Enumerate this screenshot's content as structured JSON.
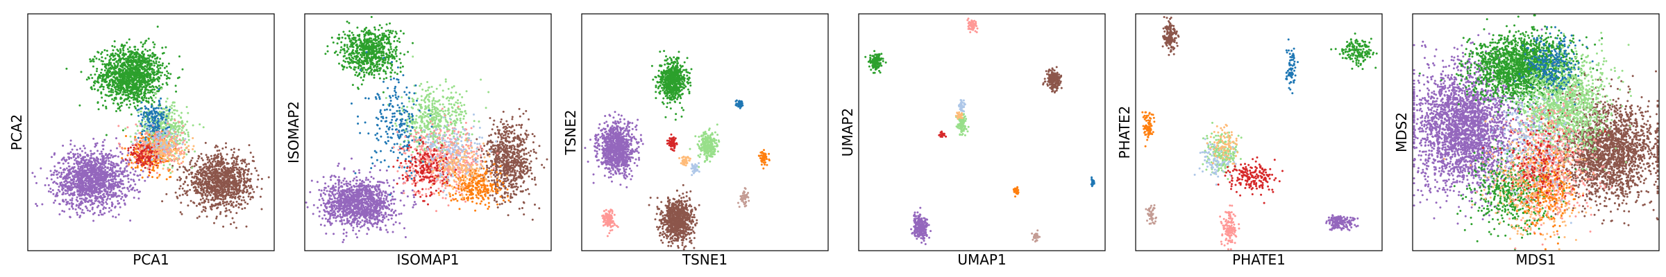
{
  "chart_data": [
    {
      "type": "scatter",
      "xlabel": "PCA1",
      "ylabel": "PCA2",
      "xlim": [
        0,
        100
      ],
      "ylim": [
        0,
        100
      ],
      "grid": false,
      "ticks": false,
      "clusters": [
        {
          "color": "#2ca02c",
          "x": 42,
          "y": 74,
          "sx": 6.5,
          "sy": 6,
          "n": 1300
        },
        {
          "color": "#9467bd",
          "x": 26,
          "y": 30,
          "sx": 7.5,
          "sy": 6,
          "n": 1400
        },
        {
          "color": "#8c564b",
          "x": 78,
          "y": 29,
          "sx": 6.5,
          "sy": 5.5,
          "n": 1100
        },
        {
          "color": "#98df8a",
          "x": 55,
          "y": 50,
          "sx": 5,
          "sy": 6,
          "n": 450
        },
        {
          "color": "#ff7f0e",
          "x": 50,
          "y": 42,
          "sx": 4,
          "sy": 4,
          "n": 260
        },
        {
          "color": "#1f77b4",
          "x": 51,
          "y": 55,
          "sx": 3,
          "sy": 4,
          "n": 160
        },
        {
          "color": "#ff9896",
          "x": 53,
          "y": 44,
          "sx": 5,
          "sy": 4,
          "n": 220
        },
        {
          "color": "#d62728",
          "x": 48,
          "y": 40,
          "sx": 3,
          "sy": 3,
          "n": 120
        },
        {
          "color": "#aec7e8",
          "x": 54,
          "y": 46,
          "sx": 4,
          "sy": 4,
          "n": 100
        },
        {
          "color": "#ffbb78",
          "x": 56,
          "y": 42,
          "sx": 4,
          "sy": 3,
          "n": 100
        }
      ]
    },
    {
      "type": "scatter",
      "xlabel": "ISOMAP1",
      "ylabel": "ISOMAP2",
      "xlim": [
        0,
        100
      ],
      "ylim": [
        0,
        100
      ],
      "grid": false,
      "ticks": false,
      "clusters": [
        {
          "color": "#2ca02c",
          "x": 26,
          "y": 84,
          "sx": 6,
          "sy": 5,
          "n": 700
        },
        {
          "color": "#9467bd",
          "x": 22,
          "y": 20,
          "sx": 7,
          "sy": 5,
          "n": 1200
        },
        {
          "color": "#8c564b",
          "x": 83,
          "y": 38,
          "sx": 5,
          "sy": 8,
          "n": 700
        },
        {
          "color": "#98df8a",
          "x": 52,
          "y": 55,
          "sx": 7,
          "sy": 7,
          "n": 450
        },
        {
          "color": "#1f77b4",
          "x": 38,
          "y": 52,
          "sx": 6,
          "sy": 10,
          "n": 220
        },
        {
          "color": "#ff9896",
          "x": 56,
          "y": 38,
          "sx": 8,
          "sy": 7,
          "n": 500
        },
        {
          "color": "#d62728",
          "x": 50,
          "y": 35,
          "sx": 5,
          "sy": 5,
          "n": 220
        },
        {
          "color": "#ff7f0e",
          "x": 70,
          "y": 27,
          "sx": 5,
          "sy": 4,
          "n": 260
        },
        {
          "color": "#aec7e8",
          "x": 60,
          "y": 42,
          "sx": 6,
          "sy": 6,
          "n": 180
        },
        {
          "color": "#ffbb78",
          "x": 64,
          "y": 35,
          "sx": 6,
          "sy": 5,
          "n": 160
        }
      ]
    },
    {
      "type": "scatter",
      "xlabel": "TSNE1",
      "ylabel": "TSNE2",
      "xlim": [
        0,
        100
      ],
      "ylim": [
        0,
        100
      ],
      "grid": false,
      "ticks": false,
      "clusters": [
        {
          "color": "#2ca02c",
          "x": 37,
          "y": 72,
          "sx": 2.7,
          "sy": 4.2,
          "n": 600
        },
        {
          "color": "#9467bd",
          "x": 14,
          "y": 43,
          "sx": 3.6,
          "sy": 5.2,
          "n": 900
        },
        {
          "color": "#8c564b",
          "x": 39,
          "y": 13,
          "sx": 3.2,
          "sy": 4.5,
          "n": 800
        },
        {
          "color": "#98df8a",
          "x": 51,
          "y": 44,
          "sx": 1.9,
          "sy": 3,
          "n": 260
        },
        {
          "color": "#ff9896",
          "x": 11,
          "y": 13,
          "sx": 1.2,
          "sy": 2,
          "n": 120
        },
        {
          "color": "#1f77b4",
          "x": 64,
          "y": 62,
          "sx": 0.6,
          "sy": 0.9,
          "n": 40
        },
        {
          "color": "#ff7f0e",
          "x": 74,
          "y": 39,
          "sx": 0.9,
          "sy": 1.4,
          "n": 60
        },
        {
          "color": "#d62728",
          "x": 37,
          "y": 45,
          "sx": 0.9,
          "sy": 1.4,
          "n": 60
        },
        {
          "color": "#ffbb78",
          "x": 42,
          "y": 38,
          "sx": 0.9,
          "sy": 1.2,
          "n": 40
        },
        {
          "color": "#aec7e8",
          "x": 46,
          "y": 35,
          "sx": 0.9,
          "sy": 1.2,
          "n": 40
        },
        {
          "color": "#c49c94",
          "x": 66,
          "y": 22,
          "sx": 1,
          "sy": 1.5,
          "n": 50
        }
      ]
    },
    {
      "type": "scatter",
      "xlabel": "UMAP1",
      "ylabel": "UMAP2",
      "xlim": [
        0,
        100
      ],
      "ylim": [
        0,
        100
      ],
      "grid": false,
      "ticks": false,
      "clusters": [
        {
          "color": "#2ca02c",
          "x": 7,
          "y": 80,
          "sx": 1.2,
          "sy": 1.8,
          "n": 150
        },
        {
          "color": "#8c564b",
          "x": 79,
          "y": 72,
          "sx": 1.4,
          "sy": 2.2,
          "n": 200
        },
        {
          "color": "#9467bd",
          "x": 25,
          "y": 10,
          "sx": 1.6,
          "sy": 2.4,
          "n": 250
        },
        {
          "color": "#ff9896",
          "x": 46,
          "y": 95,
          "sx": 0.9,
          "sy": 1.4,
          "n": 60
        },
        {
          "color": "#98df8a",
          "x": 42,
          "y": 53,
          "sx": 1,
          "sy": 2,
          "n": 90
        },
        {
          "color": "#aec7e8",
          "x": 42,
          "y": 61,
          "sx": 0.6,
          "sy": 1.5,
          "n": 40
        },
        {
          "color": "#ffbb78",
          "x": 41,
          "y": 57,
          "sx": 0.6,
          "sy": 0.9,
          "n": 30
        },
        {
          "color": "#d62728",
          "x": 34,
          "y": 49,
          "sx": 0.5,
          "sy": 0.6,
          "n": 20
        },
        {
          "color": "#ff7f0e",
          "x": 64,
          "y": 25,
          "sx": 0.6,
          "sy": 0.9,
          "n": 40
        },
        {
          "color": "#1f77b4",
          "x": 95,
          "y": 29,
          "sx": 0.4,
          "sy": 0.7,
          "n": 20
        },
        {
          "color": "#c49c94",
          "x": 72,
          "y": 6,
          "sx": 0.6,
          "sy": 0.9,
          "n": 30
        }
      ]
    },
    {
      "type": "scatter",
      "xlabel": "PHATE1",
      "ylabel": "PHATE2",
      "xlim": [
        0,
        100
      ],
      "ylim": [
        0,
        100
      ],
      "grid": false,
      "ticks": false,
      "clusters": [
        {
          "color": "#8c564b",
          "x": 14,
          "y": 91,
          "sx": 1.5,
          "sy": 3,
          "n": 150
        },
        {
          "color": "#2ca02c",
          "x": 90,
          "y": 84,
          "sx": 3,
          "sy": 2.5,
          "n": 150
        },
        {
          "color": "#1f77b4",
          "x": 63,
          "y": 77,
          "sx": 1,
          "sy": 4,
          "n": 70
        },
        {
          "color": "#ff7f0e",
          "x": 5,
          "y": 53,
          "sx": 1.2,
          "sy": 3,
          "n": 80
        },
        {
          "color": "#98df8a",
          "x": 35,
          "y": 41,
          "sx": 3,
          "sy": 4,
          "n": 200
        },
        {
          "color": "#aec7e8",
          "x": 32,
          "y": 38,
          "sx": 3,
          "sy": 4,
          "n": 80
        },
        {
          "color": "#ffbb78",
          "x": 36,
          "y": 45,
          "sx": 3,
          "sy": 4,
          "n": 80
        },
        {
          "color": "#d62728",
          "x": 47,
          "y": 31,
          "sx": 5,
          "sy": 3,
          "n": 180
        },
        {
          "color": "#ff9896",
          "x": 38,
          "y": 10,
          "sx": 1.5,
          "sy": 4,
          "n": 120
        },
        {
          "color": "#9467bd",
          "x": 83,
          "y": 12,
          "sx": 3,
          "sy": 1.5,
          "n": 150
        },
        {
          "color": "#c49c94",
          "x": 6,
          "y": 15,
          "sx": 1,
          "sy": 2.5,
          "n": 50
        }
      ]
    },
    {
      "type": "scatter",
      "xlabel": "MDS1",
      "ylabel": "MDS2",
      "xlim": [
        0,
        100
      ],
      "ylim": [
        0,
        100
      ],
      "grid": false,
      "ticks": false,
      "clusters": [
        {
          "color": "#9467bd",
          "x": 21,
          "y": 52,
          "sx": 10,
          "sy": 13,
          "n": 2600
        },
        {
          "color": "#2ca02c",
          "x": 44,
          "y": 77,
          "sx": 10,
          "sy": 7,
          "n": 1800
        },
        {
          "color": "#8c564b",
          "x": 79,
          "y": 42,
          "sx": 10,
          "sy": 10,
          "n": 2000
        },
        {
          "color": "#98df8a",
          "x": 62,
          "y": 62,
          "sx": 9,
          "sy": 10,
          "n": 1200
        },
        {
          "color": "#2ca02c",
          "x": 40,
          "y": 25,
          "sx": 8,
          "sy": 8,
          "n": 500
        },
        {
          "color": "#ffbb78",
          "x": 50,
          "y": 30,
          "sx": 9,
          "sy": 12,
          "n": 500
        },
        {
          "color": "#ff9896",
          "x": 56,
          "y": 36,
          "sx": 8,
          "sy": 12,
          "n": 500
        },
        {
          "color": "#1f77b4",
          "x": 56,
          "y": 78,
          "sx": 5,
          "sy": 6,
          "n": 250
        },
        {
          "color": "#ff7f0e",
          "x": 54,
          "y": 24,
          "sx": 6,
          "sy": 8,
          "n": 200
        },
        {
          "color": "#aec7e8",
          "x": 48,
          "y": 44,
          "sx": 8,
          "sy": 10,
          "n": 250
        },
        {
          "color": "#d62728",
          "x": 52,
          "y": 38,
          "sx": 6,
          "sy": 8,
          "n": 150
        }
      ]
    }
  ]
}
